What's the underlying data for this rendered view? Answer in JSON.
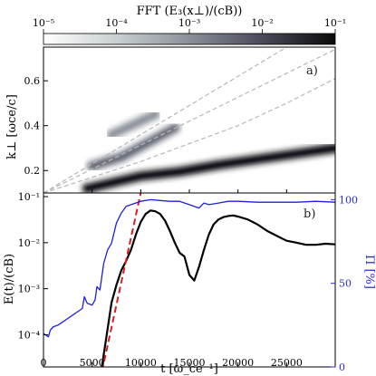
{
  "chart_data": [
    {
      "type": "heatmap",
      "panel_label": "a)",
      "colorbar": {
        "title": "FFT (E₃(x⊥)/(cB))",
        "scale": "log",
        "range": [
          1e-05,
          0.1
        ],
        "tick_labels": [
          "10⁻⁵",
          "10⁻⁴",
          "10⁻³",
          "10⁻²",
          "10⁻¹"
        ],
        "colors": [
          "#ffffff",
          "#c9d0d2",
          "#8a8f98",
          "#4a4a5a",
          "#0a0a0a"
        ]
      },
      "ylabel": "k⊥ [ωce/c]",
      "ylim": [
        0.1,
        0.75
      ],
      "yticks": [
        0.2,
        0.4,
        0.6
      ],
      "ytick_labels": [
        "0.2",
        "0.4",
        "0.6"
      ],
      "xlim": [
        0,
        30000
      ],
      "bands": [
        {
          "name": "fundamental",
          "t": [
            4500,
            7000,
            10000,
            14000,
            18000,
            22000,
            26000,
            30000
          ],
          "k": [
            0.12,
            0.145,
            0.175,
            0.195,
            0.225,
            0.25,
            0.275,
            0.3
          ],
          "level": 0.08
        },
        {
          "name": "second",
          "t": [
            5000,
            8000,
            11000,
            13500
          ],
          "k": [
            0.22,
            0.26,
            0.33,
            0.39
          ],
          "level": 0.003
        },
        {
          "name": "third",
          "t": [
            7000,
            9000,
            11500
          ],
          "k": [
            0.36,
            0.4,
            0.45
          ],
          "level": 0.0008
        }
      ],
      "guide_lines": [
        {
          "t": [
            0,
            30000
          ],
          "k": [
            0.1,
            0.88
          ]
        },
        {
          "t": [
            0,
            30000
          ],
          "k": [
            0.1,
            0.74
          ]
        },
        {
          "t": [
            0,
            5000,
            10000,
            15000,
            20000,
            25000,
            30000
          ],
          "k": [
            0.1,
            0.17,
            0.24,
            0.32,
            0.4,
            0.5,
            0.61
          ]
        }
      ]
    },
    {
      "type": "line",
      "panel_label": "b)",
      "xlabel": "t [ω_ce⁻¹]",
      "ylabel": "E(t)/(cB)",
      "y2label": "Π [%]",
      "xlim": [
        0,
        30000
      ],
      "xticks": [
        0,
        5000,
        10000,
        15000,
        20000,
        25000
      ],
      "xtick_labels": [
        "0",
        "5000",
        "10000",
        "15000",
        "20000",
        "25000"
      ],
      "ylim_log": [
        2e-05,
        0.12
      ],
      "yticks": [
        0.0001,
        0.001,
        0.01,
        0.1
      ],
      "ytick_labels": [
        "10⁻⁴",
        "10⁻³",
        "10⁻²",
        "10⁻¹"
      ],
      "y2lim": [
        0,
        104
      ],
      "y2ticks": [
        0,
        50,
        100
      ],
      "y2tick_labels": [
        "0",
        "50",
        "100"
      ],
      "series": [
        {
          "color": "#000000",
          "axis": "left",
          "x": [
            6000,
            6500,
            7000,
            7500,
            8000,
            8500,
            9000,
            9500,
            10000,
            10500,
            11000,
            11500,
            12000,
            12500,
            13000,
            13500,
            14000,
            14500,
            15000,
            15500,
            16000,
            16500,
            17000,
            17500,
            18000,
            18500,
            19000,
            19500,
            20000,
            21000,
            22000,
            23000,
            24000,
            25000,
            26000,
            27000,
            28000,
            29000,
            30000
          ],
          "y": [
            2e-05,
            0.0001,
            0.0005,
            0.0012,
            0.0025,
            0.004,
            0.007,
            0.015,
            0.028,
            0.042,
            0.05,
            0.048,
            0.042,
            0.03,
            0.018,
            0.01,
            0.006,
            0.005,
            0.002,
            0.0015,
            0.003,
            0.007,
            0.015,
            0.025,
            0.032,
            0.036,
            0.038,
            0.039,
            0.037,
            0.032,
            0.025,
            0.018,
            0.014,
            0.011,
            0.01,
            0.009,
            0.009,
            0.0095,
            0.0092
          ]
        },
        {
          "color": "#d62020",
          "axis": "left",
          "style": "dashed",
          "x": [
            5800,
            10000
          ],
          "y": [
            1e-05,
            0.12
          ]
        },
        {
          "color": "#1f1fe0",
          "axis": "right",
          "x": [
            0,
            500,
            700,
            1000,
            1500,
            2000,
            2500,
            3000,
            3500,
            4000,
            4200,
            4500,
            5000,
            5300,
            5500,
            5800,
            6200,
            6600,
            7000,
            7500,
            8000,
            8500,
            9000,
            10000,
            11000,
            12000,
            13000,
            14000,
            15000,
            16000,
            16500,
            17000,
            18000,
            19000,
            20000,
            22000,
            24000,
            26000,
            28000,
            30000
          ],
          "y": [
            20,
            18,
            22,
            24,
            25,
            27,
            29,
            31,
            33,
            35,
            42,
            38,
            37,
            40,
            48,
            46,
            62,
            70,
            74,
            86,
            92,
            96,
            97,
            99,
            100,
            99.5,
            99,
            99,
            97,
            95,
            98,
            97,
            98,
            99,
            99,
            98.5,
            98.5,
            98.5,
            99,
            98.5
          ]
        }
      ]
    }
  ]
}
